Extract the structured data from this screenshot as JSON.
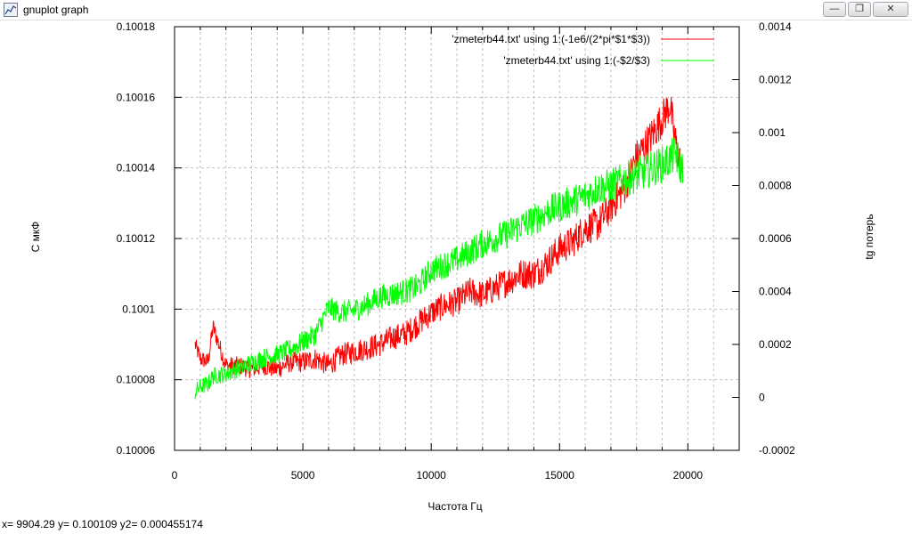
{
  "window": {
    "title": "gnuplot graph",
    "icon": "gnuplot-app-icon",
    "buttons": {
      "minimize": "minimize-icon",
      "maximize": "restore-icon",
      "close": "close-icon"
    }
  },
  "colors": {
    "series1": "#ff0000",
    "series2": "#00ff00",
    "grid": "#c0c0c0",
    "axis": "#000000"
  },
  "status_bar": {
    "readout": "x= 9904.29 y= 0.100109 y2= 0.000455174"
  },
  "chart_data": {
    "type": "line",
    "title": "",
    "xlabel": "Частота Гц",
    "ylabel": "C мкФ",
    "y2label": "tg потерь",
    "xlim": [
      0,
      22000
    ],
    "ylim": [
      0.10006,
      0.10018
    ],
    "y2lim": [
      -0.0002,
      0.0014
    ],
    "grid": true,
    "legend_position": "top-right",
    "x_ticks": [
      {
        "value": 0,
        "label": "0"
      },
      {
        "value": 5000,
        "label": "5000"
      },
      {
        "value": 10000,
        "label": "10000"
      },
      {
        "value": 15000,
        "label": "15000"
      },
      {
        "value": 20000,
        "label": "20000"
      }
    ],
    "y_ticks": [
      {
        "value": 0.10006,
        "label": "0.10006"
      },
      {
        "value": 0.10008,
        "label": "0.10008"
      },
      {
        "value": 0.1001,
        "label": "0.1001"
      },
      {
        "value": 0.10012,
        "label": "0.10012"
      },
      {
        "value": 0.10014,
        "label": "0.10014"
      },
      {
        "value": 0.10016,
        "label": "0.10016"
      },
      {
        "value": 0.10018,
        "label": "0.10018"
      }
    ],
    "y2_ticks": [
      {
        "value": -0.0002,
        "label": "-0.0002"
      },
      {
        "value": 0,
        "label": "0"
      },
      {
        "value": 0.0002,
        "label": "0.0002"
      },
      {
        "value": 0.0004,
        "label": "0.0004"
      },
      {
        "value": 0.0006,
        "label": "0.0006"
      },
      {
        "value": 0.0008,
        "label": "0.0008"
      },
      {
        "value": 0.001,
        "label": "0.001"
      },
      {
        "value": 0.0012,
        "label": "0.0012"
      },
      {
        "value": 0.0014,
        "label": "0.0014"
      }
    ],
    "series": [
      {
        "name": "'zmeterb44.txt' using 1:(-1e6/(2*pi*$1*$3))",
        "axis": "y",
        "x": [
          800,
          1000,
          1300,
          1500,
          2000,
          2500,
          3000,
          3500,
          4000,
          4500,
          5000,
          5500,
          6000,
          6500,
          7000,
          7500,
          8000,
          8500,
          9000,
          9500,
          10000,
          10500,
          11000,
          11500,
          12000,
          12500,
          13000,
          13500,
          14000,
          14500,
          15000,
          15500,
          16000,
          16500,
          17000,
          17500,
          18000,
          18500,
          19000,
          19300,
          19500,
          19800
        ],
        "values": [
          0.10009,
          0.100086,
          0.100085,
          0.100095,
          0.100084,
          0.100084,
          0.100083,
          0.100084,
          0.100083,
          0.100085,
          0.100085,
          0.100086,
          0.100084,
          0.100087,
          0.100088,
          0.100089,
          0.10009,
          0.100092,
          0.100093,
          0.100096,
          0.100099,
          0.100101,
          0.100102,
          0.100105,
          0.100104,
          0.100106,
          0.100108,
          0.10011,
          0.10011,
          0.100113,
          0.100117,
          0.100119,
          0.100123,
          0.100124,
          0.100129,
          0.100134,
          0.100143,
          0.100148,
          0.100154,
          0.100158,
          0.100148,
          0.100138
        ]
      },
      {
        "name": "'zmeterb44.txt' using 1:(-$2/$3)",
        "axis": "y2",
        "x": [
          800,
          1000,
          1300,
          1500,
          2000,
          2500,
          3000,
          3500,
          4000,
          4500,
          5000,
          5500,
          6000,
          6500,
          7000,
          7500,
          8000,
          8500,
          9000,
          9500,
          10000,
          10500,
          11000,
          11500,
          12000,
          12500,
          13000,
          13500,
          14000,
          14500,
          15000,
          15500,
          16000,
          16500,
          17000,
          17500,
          18000,
          18500,
          19000,
          19300,
          19500,
          19800
        ],
        "values": [
          2e-05,
          4e-05,
          5e-05,
          8e-05,
          9e-05,
          0.00011,
          0.00013,
          0.00015,
          0.00016,
          0.00018,
          0.00021,
          0.00024,
          0.00034,
          0.00032,
          0.00033,
          0.00035,
          0.00038,
          0.00039,
          0.0004,
          0.00042,
          0.00048,
          0.0005,
          0.00052,
          0.00055,
          0.00058,
          0.0006,
          0.00062,
          0.00065,
          0.00067,
          0.0007,
          0.00072,
          0.00074,
          0.00076,
          0.00079,
          0.0008,
          0.00082,
          0.00084,
          0.00086,
          0.00088,
          0.0009,
          0.00092,
          0.00086
        ]
      }
    ]
  }
}
